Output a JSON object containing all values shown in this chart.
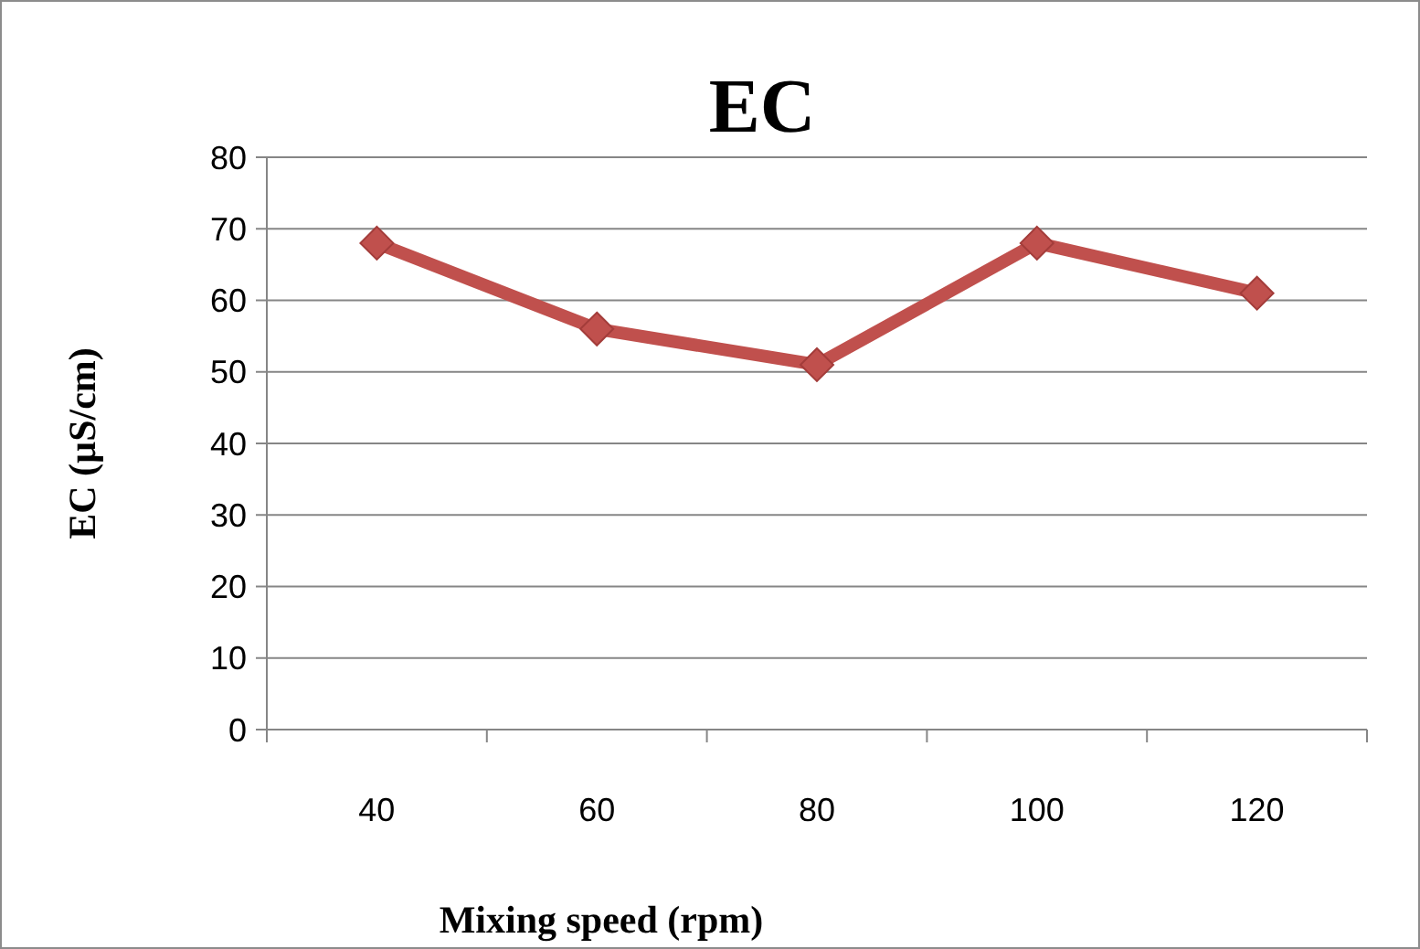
{
  "chart_data": {
    "type": "line",
    "title": "EC",
    "xlabel": "Mixing speed (rpm)",
    "ylabel": "EC (µS/cm)",
    "categories": [
      "40",
      "60",
      "80",
      "100",
      "120"
    ],
    "series": [
      {
        "color": "#c0504d",
        "values": [
          68,
          56,
          51,
          68,
          61
        ]
      }
    ],
    "ylim": [
      0,
      80
    ],
    "yticks": [
      0,
      10,
      20,
      30,
      40,
      50,
      60,
      70,
      80
    ],
    "grid": "y",
    "marker": "diamond"
  }
}
